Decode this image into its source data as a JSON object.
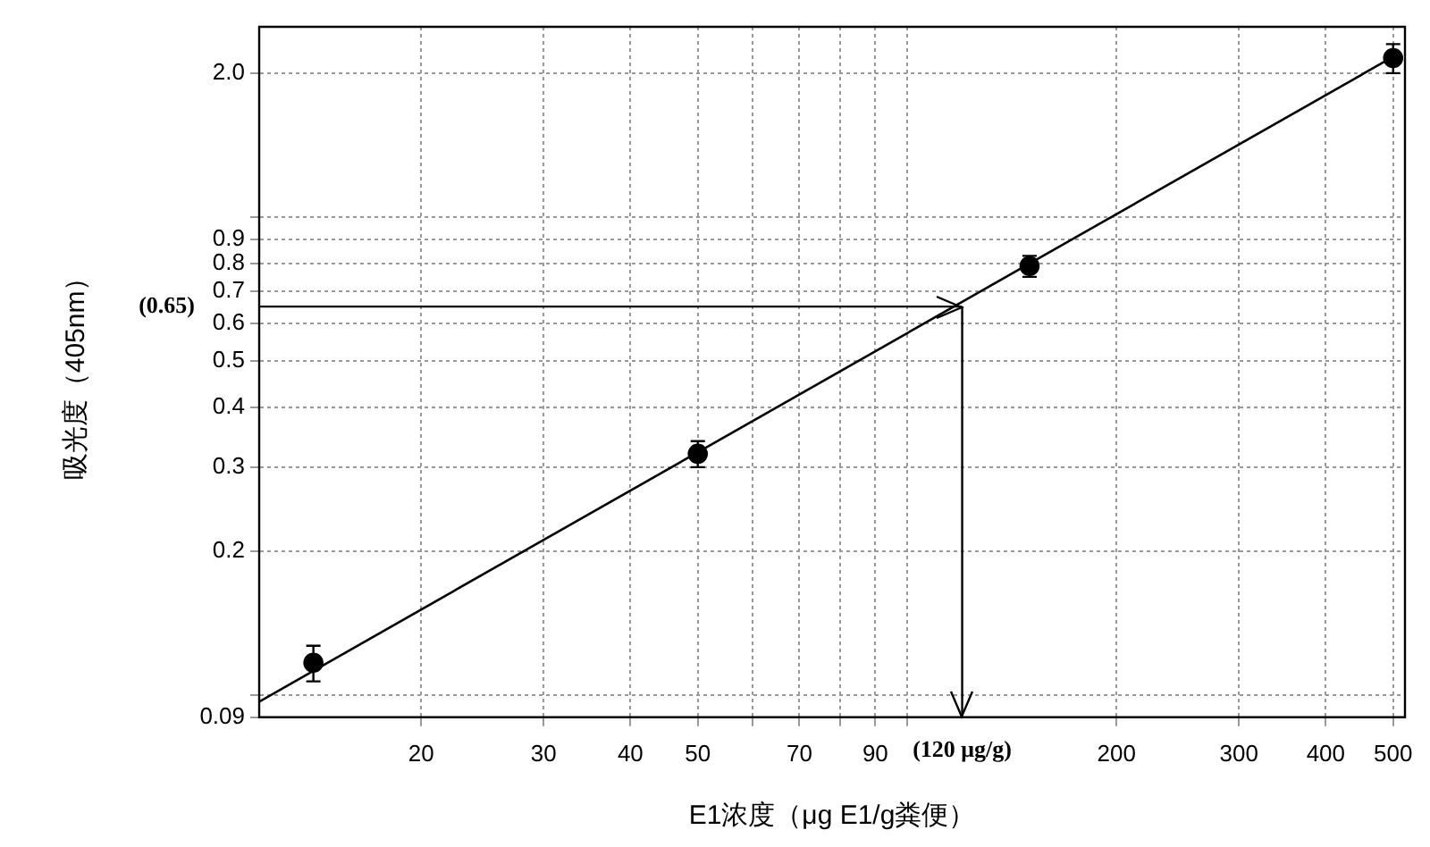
{
  "chart_data": {
    "type": "scatter",
    "xlabel": "E1浓度（μg E1/g粪便）",
    "ylabel": "吸光度（405nm）",
    "log": "xy",
    "grid": true,
    "legend": false,
    "marker": "circle",
    "xlim": [
      11.7,
      520
    ],
    "ylim": [
      0.09,
      2.5
    ],
    "xticks": [
      20,
      30,
      40,
      50,
      {
        "value": 60,
        "label": null
      },
      70,
      {
        "value": 80,
        "label": null
      },
      90,
      {
        "value": 100,
        "label": null
      },
      200,
      300,
      400,
      500
    ],
    "yticks": [
      0.09,
      {
        "value": 0.1,
        "label": null
      },
      0.2,
      0.3,
      0.4,
      0.5,
      0.6,
      0.7,
      0.8,
      0.9,
      {
        "value": 1,
        "label": null
      },
      {
        "value": 2,
        "label": "2.0"
      }
    ],
    "series": [
      {
        "color": "#000000",
        "x": [
          14,
          50,
          150,
          500
        ],
        "values": [
          0.117,
          0.32,
          0.79,
          2.15
        ],
        "errors": [
          0.01,
          0.02,
          0.04,
          0.15
        ]
      },
      {
        "type": "line",
        "color": "#000000",
        "marker": "none",
        "x": [
          11.7,
          510
        ],
        "values": [
          0.097,
          2.2
        ]
      }
    ],
    "ref_lines": [
      {
        "axis": "y",
        "value": 0.65,
        "label": "(0.65)"
      },
      {
        "axis": "x",
        "value": 120,
        "label": "(120 μg/g)"
      }
    ]
  }
}
